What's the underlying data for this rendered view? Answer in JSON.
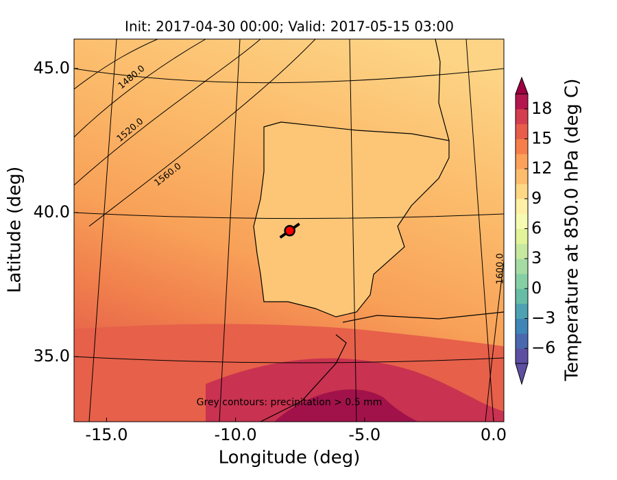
{
  "chart_data": {
    "type": "map",
    "title": "Init: 2017-04-30 00:00; Valid: 2017-05-15 03:00",
    "x_label": "Longitude (deg)",
    "y_label": "Latitude (deg)",
    "xlim": [
      -16.26,
      0.4
    ],
    "ylim": [
      32.74,
      46.02
    ],
    "xticks": [
      {
        "value": -15,
        "label": "-15.0"
      },
      {
        "value": -10,
        "label": "-10.0"
      },
      {
        "value": -5,
        "label": "-5.0"
      },
      {
        "value": 0,
        "label": "0.0"
      }
    ],
    "yticks": [
      {
        "value": 35,
        "label": "35.0"
      },
      {
        "value": 40,
        "label": "40.0"
      },
      {
        "value": 45,
        "label": "45.0"
      }
    ],
    "marker": {
      "x": -7.9,
      "y": 39.37,
      "color": "#ff0000"
    },
    "contour_labels": [
      "1480.0",
      "1520.0",
      "1560.0",
      "1600.0"
    ],
    "annotation": "Grey contours: precipitation > 0.5 mm",
    "colorbar": {
      "label": "Temperature at 850.0 hPa (deg C)",
      "clim": [
        -7.5,
        19.5
      ],
      "colors": [
        "#5e4fa2",
        "#4a68ad",
        "#3f85b7",
        "#4da2b1",
        "#67bca5",
        "#86cfa5",
        "#a6dba4",
        "#c6e89f",
        "#e3f399",
        "#f6fbb2",
        "#fff0a6",
        "#fed884",
        "#fdbd6d",
        "#fca05a",
        "#f67e4b",
        "#e85d4a",
        "#d53e4f",
        "#b3174e"
      ],
      "under_color": "#5e4fa2",
      "over_color": "#9e0142",
      "ticks": [
        {
          "value": -6,
          "label": "−6"
        },
        {
          "value": -3,
          "label": "−3"
        },
        0,
        3,
        6,
        9,
        12,
        15,
        18
      ]
    }
  }
}
